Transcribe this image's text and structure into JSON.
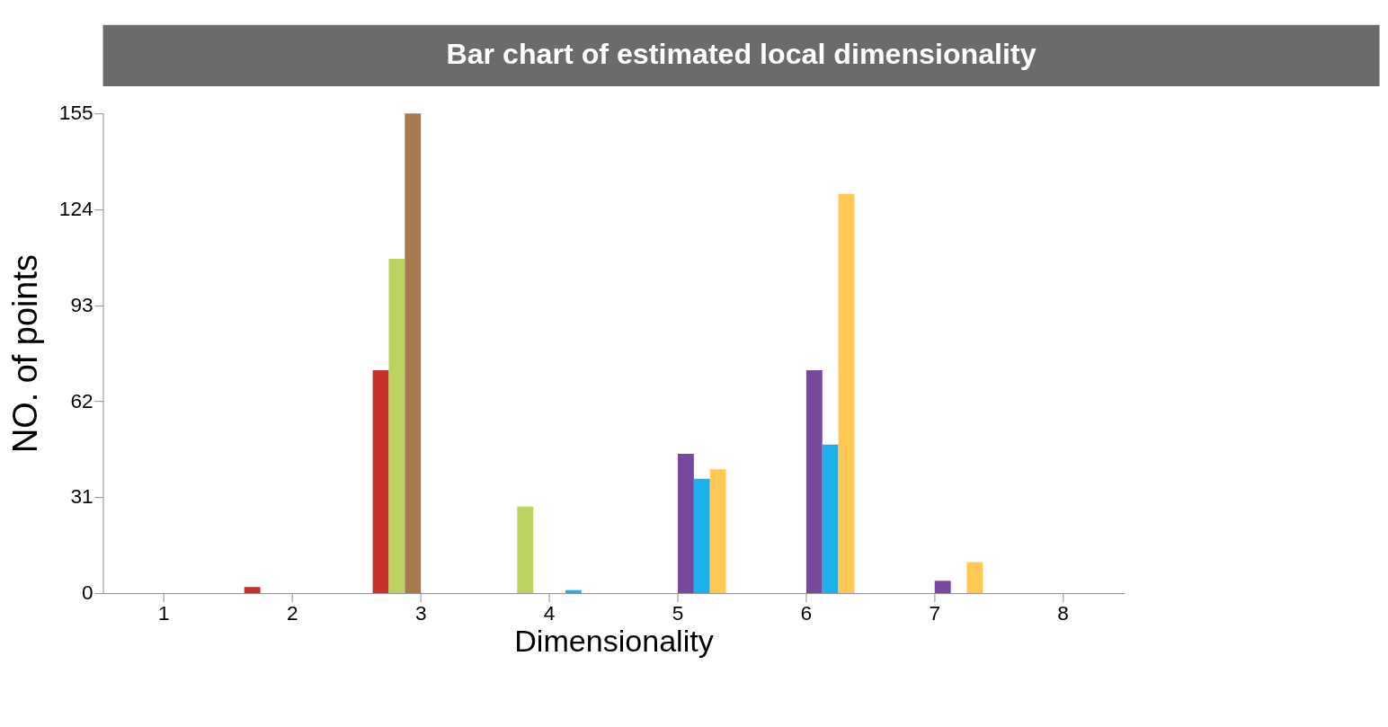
{
  "chart_data": {
    "type": "bar",
    "title": "Bar chart of estimated local dimensionality",
    "xlabel": "Dimensionality",
    "ylabel": "NO. of points",
    "categories": [
      "1",
      "2",
      "3",
      "4",
      "5",
      "6",
      "7",
      "8"
    ],
    "series": [
      {
        "color": "#c9302c",
        "values": [
          null,
          2,
          72,
          null,
          null,
          null,
          null,
          null
        ]
      },
      {
        "color": "#bcd35f",
        "values": [
          null,
          null,
          108,
          28,
          null,
          null,
          null,
          null
        ]
      },
      {
        "color": "#a57a4f",
        "values": [
          null,
          null,
          155,
          null,
          null,
          null,
          null,
          null
        ]
      },
      {
        "color": "#77489b",
        "values": [
          null,
          null,
          null,
          null,
          45,
          72,
          4,
          null
        ]
      },
      {
        "color": "#1eb0ec",
        "values": [
          null,
          null,
          null,
          1,
          37,
          48,
          null,
          null
        ]
      },
      {
        "color": "#ffc753",
        "values": [
          null,
          null,
          null,
          null,
          40,
          129,
          10,
          null
        ]
      }
    ],
    "ylim": [
      0,
      155
    ],
    "yticks": [
      0,
      31,
      62,
      93,
      124,
      155
    ],
    "grid": false,
    "legend": false
  }
}
